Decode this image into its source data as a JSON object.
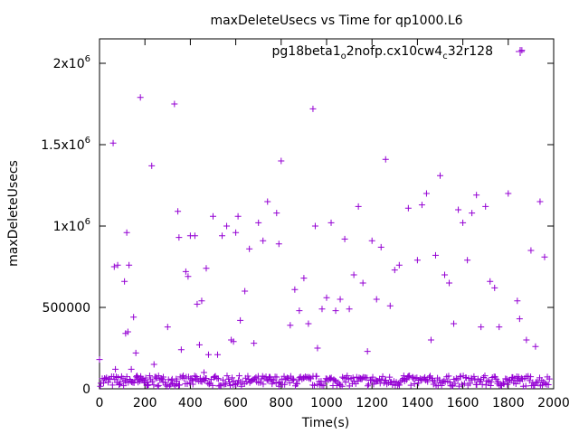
{
  "chart_data": {
    "type": "scatter",
    "title": "maxDeleteUsecs vs Time for qp1000.L6",
    "xlabel": "Time(s)",
    "ylabel": "maxDeleteUsecs",
    "xlim": [
      0,
      2000
    ],
    "ylim": [
      0,
      2150000
    ],
    "x_ticks": [
      0,
      200,
      400,
      600,
      800,
      1000,
      1200,
      1400,
      1600,
      1800,
      2000
    ],
    "x_tick_labels": [
      "0",
      "200",
      "400",
      "600",
      "800",
      "1000",
      "1200",
      "1400",
      "1600",
      "1800",
      "2000"
    ],
    "y_ticks": [
      0,
      500000,
      1000000,
      1500000,
      2000000
    ],
    "y_tick_labels": [
      {
        "base": "0",
        "exp": ""
      },
      {
        "base": "500000",
        "exp": ""
      },
      {
        "base": "1x10",
        "exp": "6"
      },
      {
        "base": "1.5x10",
        "exp": "6"
      },
      {
        "base": "2x10",
        "exp": "6"
      }
    ],
    "legend": {
      "position": "top-right",
      "parts": [
        {
          "text": "pg18beta1",
          "sub": false
        },
        {
          "text": "o",
          "sub": true
        },
        {
          "text": "2nofp.cx10cw4",
          "sub": false
        },
        {
          "text": "c",
          "sub": true
        },
        {
          "text": "32r128",
          "sub": false
        }
      ]
    },
    "grid": false,
    "series": [
      {
        "name": "pg18beta1_o2nofp.cx10cw4_c32r128",
        "color": "#9400d3",
        "marker": "plus",
        "x": [
          0,
          40,
          60,
          65,
          70,
          80,
          90,
          110,
          115,
          120,
          125,
          130,
          140,
          150,
          160,
          165,
          170,
          180,
          190,
          200,
          210,
          230,
          240,
          260,
          280,
          300,
          320,
          330,
          340,
          345,
          350,
          360,
          380,
          390,
          400,
          410,
          420,
          430,
          440,
          450,
          460,
          470,
          480,
          500,
          520,
          540,
          560,
          580,
          590,
          600,
          610,
          620,
          640,
          660,
          680,
          700,
          720,
          740,
          760,
          780,
          790,
          800,
          820,
          840,
          860,
          880,
          900,
          920,
          940,
          950,
          960,
          980,
          1000,
          1020,
          1040,
          1060,
          1080,
          1100,
          1120,
          1140,
          1160,
          1180,
          1200,
          1220,
          1240,
          1260,
          1280,
          1300,
          1320,
          1340,
          1360,
          1380,
          1400,
          1420,
          1440,
          1460,
          1480,
          1500,
          1520,
          1540,
          1560,
          1580,
          1600,
          1620,
          1640,
          1660,
          1680,
          1700,
          1720,
          1740,
          1760,
          1780,
          1800,
          1820,
          1840,
          1850,
          1860,
          1880,
          1900,
          1920,
          1940,
          1960
        ],
        "y": [
          180000,
          60000,
          1510000,
          750000,
          120000,
          760000,
          30000,
          660000,
          340000,
          960000,
          350000,
          760000,
          120000,
          440000,
          220000,
          80000,
          40000,
          1790000,
          60000,
          50000,
          40000,
          1370000,
          150000,
          80000,
          40000,
          380000,
          60000,
          1750000,
          30000,
          1090000,
          930000,
          240000,
          720000,
          690000,
          940000,
          50000,
          940000,
          520000,
          270000,
          540000,
          100000,
          740000,
          210000,
          1060000,
          210000,
          940000,
          1000000,
          300000,
          290000,
          960000,
          1060000,
          420000,
          600000,
          860000,
          280000,
          1020000,
          910000,
          1150000,
          30000,
          1080000,
          890000,
          1400000,
          60000,
          390000,
          610000,
          480000,
          680000,
          400000,
          1720000,
          1000000,
          250000,
          490000,
          560000,
          1020000,
          480000,
          550000,
          920000,
          490000,
          700000,
          1120000,
          650000,
          230000,
          910000,
          550000,
          870000,
          1410000,
          510000,
          730000,
          760000,
          80000,
          1110000,
          70000,
          790000,
          1130000,
          1200000,
          300000,
          820000,
          1310000,
          700000,
          650000,
          400000,
          1100000,
          1020000,
          790000,
          1080000,
          1190000,
          380000,
          1120000,
          660000,
          620000,
          380000,
          30000,
          1200000,
          70000,
          540000,
          430000,
          2080000,
          300000,
          850000,
          260000,
          1150000,
          810000
        ]
      }
    ],
    "baseline": {
      "x_start": 0,
      "x_end": 1980,
      "y_min": 15000,
      "y_max": 80000
    }
  }
}
